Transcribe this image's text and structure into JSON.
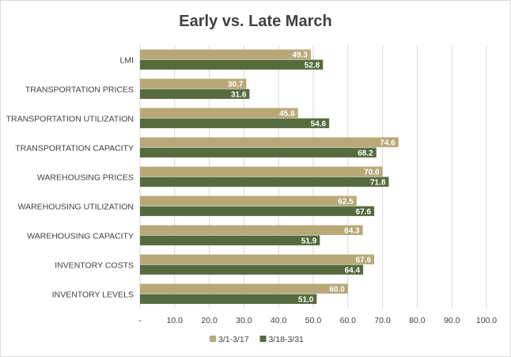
{
  "chart_data": {
    "type": "bar",
    "orientation": "horizontal",
    "title": "Early vs. Late March",
    "categories": [
      "LMI",
      "TRANSPORTATION PRICES",
      "TRANSPORTATION  UTILIZATION",
      "TRANSPORTATION CAPACITY",
      "WAREHOUSING PRICES",
      "WAREHOUSING UTILIZATION",
      "WAREHOUSING CAPACITY",
      "INVENTORY COSTS",
      "INVENTORY LEVELS"
    ],
    "series": [
      {
        "name": "3/1-3/17",
        "color": "#b8a878",
        "values": [
          49.3,
          30.7,
          45.6,
          74.6,
          70.0,
          62.5,
          64.3,
          67.6,
          60.0
        ]
      },
      {
        "name": "3/18-3/31",
        "color": "#556b3e",
        "values": [
          52.8,
          31.6,
          54.6,
          68.2,
          71.8,
          67.6,
          51.9,
          64.4,
          51.0
        ]
      }
    ],
    "xlim": [
      0,
      100
    ],
    "x_ticks": [
      "-",
      "10.0",
      "20.0",
      "30.0",
      "40.0",
      "50.0",
      "60.0",
      "70.0",
      "80.0",
      "90.0",
      "100.0"
    ],
    "xlabel": "",
    "ylabel": "",
    "grid": "vertical",
    "legend_position": "bottom"
  }
}
